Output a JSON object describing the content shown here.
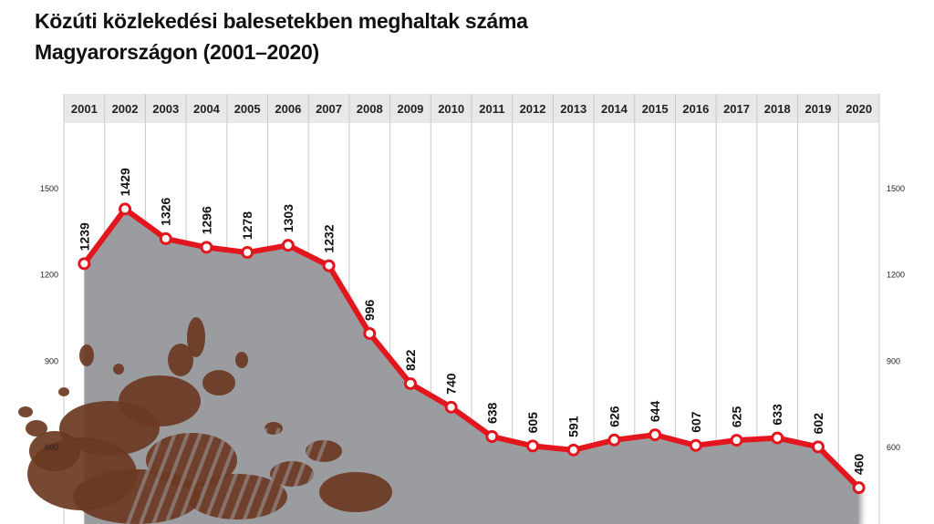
{
  "title": {
    "line1": "Közúti közlekedési balesetekben meghaltak száma",
    "line2": "Magyarországon (2001–2020)"
  },
  "colors": {
    "line": "#e3161e",
    "area": "#9b9ca0",
    "header_band": "#e8e8e8",
    "grid": "#c9c9c9",
    "mud": "#6b3a22"
  },
  "chart_data": {
    "type": "area",
    "title": "Közúti közlekedési balesetekben meghaltak száma Magyarországon (2001–2020)",
    "x": [
      "2001",
      "2002",
      "2003",
      "2004",
      "2005",
      "2006",
      "2007",
      "2008",
      "2009",
      "2010",
      "2011",
      "2012",
      "2013",
      "2014",
      "2015",
      "2016",
      "2017",
      "2018",
      "2019",
      "2020"
    ],
    "series": [
      {
        "values": [
          1239,
          1429,
          1326,
          1296,
          1278,
          1303,
          1232,
          996,
          822,
          740,
          638,
          605,
          591,
          626,
          644,
          607,
          625,
          633,
          602,
          460
        ]
      }
    ],
    "y_ticks": [
      1500,
      1200,
      900,
      600
    ],
    "ylim": [
      300,
      1760
    ],
    "grid": true,
    "axis_labels_position": "both sides",
    "x_labels_position": "top",
    "xlabel": "",
    "ylabel": ""
  }
}
